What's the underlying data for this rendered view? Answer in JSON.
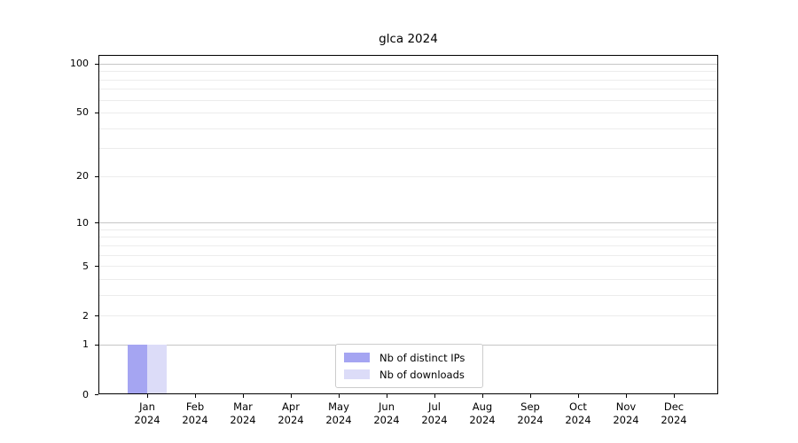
{
  "title": "glca 2024",
  "chart_data": {
    "type": "bar",
    "title": "glca 2024",
    "xlabel": "",
    "ylabel": "",
    "yscale": "log1p",
    "ylim": [
      0,
      112.9
    ],
    "grid": true,
    "legend_position": "lower center",
    "categories": [
      {
        "label": "Jan",
        "sublabel": "2024"
      },
      {
        "label": "Feb",
        "sublabel": "2024"
      },
      {
        "label": "Mar",
        "sublabel": "2024"
      },
      {
        "label": "Apr",
        "sublabel": "2024"
      },
      {
        "label": "May",
        "sublabel": "2024"
      },
      {
        "label": "Jun",
        "sublabel": "2024"
      },
      {
        "label": "Jul",
        "sublabel": "2024"
      },
      {
        "label": "Aug",
        "sublabel": "2024"
      },
      {
        "label": "Sep",
        "sublabel": "2024"
      },
      {
        "label": "Oct",
        "sublabel": "2024"
      },
      {
        "label": "Nov",
        "sublabel": "2024"
      },
      {
        "label": "Dec",
        "sublabel": "2024"
      }
    ],
    "series": [
      {
        "name": "Nb of distinct IPs",
        "color": "#a5a5f2",
        "values": [
          1,
          0,
          0,
          0,
          0,
          0,
          0,
          0,
          0,
          0,
          0,
          0
        ]
      },
      {
        "name": "Nb of downloads",
        "color": "#dcdcf8",
        "values": [
          1,
          0,
          0,
          0,
          0,
          0,
          0,
          0,
          0,
          0,
          0,
          0
        ]
      }
    ],
    "yticks": [
      0,
      1,
      2,
      5,
      10,
      20,
      50,
      100
    ],
    "major_gridlines": [
      1,
      10,
      100
    ],
    "minor_gridlines": [
      2,
      3,
      4,
      5,
      6,
      7,
      8,
      9,
      20,
      30,
      40,
      50,
      60,
      70,
      80,
      90
    ]
  },
  "colors": {
    "spine": "#000000",
    "major_grid": "#c6c6c6",
    "minor_grid": "#ececec",
    "background": "#ffffff",
    "text": "#000000",
    "legend_border": "#cccccc"
  }
}
